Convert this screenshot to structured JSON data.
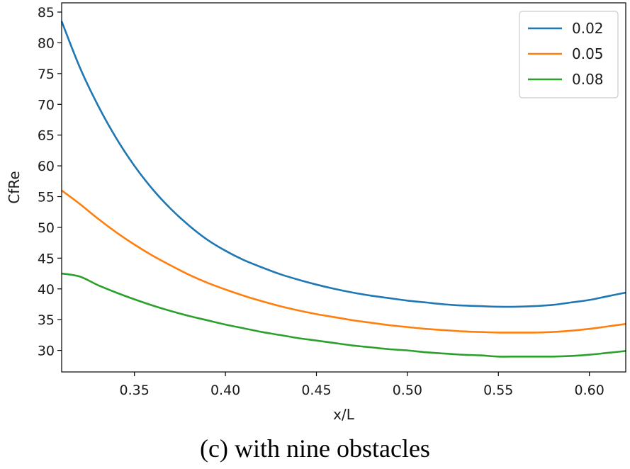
{
  "chart_data": {
    "type": "line",
    "xlabel": "x/L",
    "ylabel": "CfRe",
    "xlim": [
      0.31,
      0.62
    ],
    "ylim": [
      26.5,
      86.5
    ],
    "xticks": [
      "0.35",
      "0.40",
      "0.45",
      "0.50",
      "0.55",
      "0.60"
    ],
    "yticks": [
      "30",
      "35",
      "40",
      "45",
      "50",
      "55",
      "60",
      "65",
      "70",
      "75",
      "80",
      "85"
    ],
    "grid": false,
    "legend_position": "top-right",
    "series": [
      {
        "name": "0.02",
        "color": "#1f77b4",
        "points": [
          [
            0.31,
            83.5
          ],
          [
            0.32,
            76.0
          ],
          [
            0.33,
            69.8
          ],
          [
            0.34,
            64.5
          ],
          [
            0.35,
            60.0
          ],
          [
            0.36,
            56.2
          ],
          [
            0.37,
            53.0
          ],
          [
            0.38,
            50.3
          ],
          [
            0.39,
            48.0
          ],
          [
            0.4,
            46.2
          ],
          [
            0.41,
            44.7
          ],
          [
            0.42,
            43.5
          ],
          [
            0.43,
            42.4
          ],
          [
            0.44,
            41.5
          ],
          [
            0.45,
            40.7
          ],
          [
            0.46,
            40.0
          ],
          [
            0.47,
            39.4
          ],
          [
            0.48,
            38.9
          ],
          [
            0.49,
            38.5
          ],
          [
            0.5,
            38.1
          ],
          [
            0.51,
            37.8
          ],
          [
            0.52,
            37.5
          ],
          [
            0.53,
            37.3
          ],
          [
            0.54,
            37.2
          ],
          [
            0.55,
            37.1
          ],
          [
            0.56,
            37.1
          ],
          [
            0.57,
            37.2
          ],
          [
            0.58,
            37.4
          ],
          [
            0.59,
            37.8
          ],
          [
            0.6,
            38.2
          ],
          [
            0.61,
            38.8
          ],
          [
            0.62,
            39.4
          ]
        ]
      },
      {
        "name": "0.05",
        "color": "#ff7f0e",
        "points": [
          [
            0.31,
            56.0
          ],
          [
            0.32,
            53.8
          ],
          [
            0.33,
            51.4
          ],
          [
            0.34,
            49.2
          ],
          [
            0.35,
            47.2
          ],
          [
            0.36,
            45.4
          ],
          [
            0.37,
            43.8
          ],
          [
            0.38,
            42.3
          ],
          [
            0.39,
            41.0
          ],
          [
            0.4,
            39.9
          ],
          [
            0.41,
            38.9
          ],
          [
            0.42,
            38.0
          ],
          [
            0.43,
            37.2
          ],
          [
            0.44,
            36.5
          ],
          [
            0.45,
            35.9
          ],
          [
            0.46,
            35.4
          ],
          [
            0.47,
            34.9
          ],
          [
            0.48,
            34.5
          ],
          [
            0.49,
            34.1
          ],
          [
            0.5,
            33.8
          ],
          [
            0.51,
            33.5
          ],
          [
            0.52,
            33.3
          ],
          [
            0.53,
            33.1
          ],
          [
            0.54,
            33.0
          ],
          [
            0.55,
            32.9
          ],
          [
            0.56,
            32.9
          ],
          [
            0.57,
            32.9
          ],
          [
            0.58,
            33.0
          ],
          [
            0.59,
            33.2
          ],
          [
            0.6,
            33.5
          ],
          [
            0.61,
            33.9
          ],
          [
            0.62,
            34.3
          ]
        ]
      },
      {
        "name": "0.08",
        "color": "#2ca02c",
        "points": [
          [
            0.31,
            42.5
          ],
          [
            0.32,
            42.0
          ],
          [
            0.33,
            40.6
          ],
          [
            0.34,
            39.4
          ],
          [
            0.35,
            38.3
          ],
          [
            0.36,
            37.3
          ],
          [
            0.37,
            36.4
          ],
          [
            0.38,
            35.6
          ],
          [
            0.39,
            34.9
          ],
          [
            0.4,
            34.2
          ],
          [
            0.41,
            33.6
          ],
          [
            0.42,
            33.0
          ],
          [
            0.43,
            32.5
          ],
          [
            0.44,
            32.0
          ],
          [
            0.45,
            31.6
          ],
          [
            0.46,
            31.2
          ],
          [
            0.47,
            30.8
          ],
          [
            0.48,
            30.5
          ],
          [
            0.49,
            30.2
          ],
          [
            0.5,
            30.0
          ],
          [
            0.51,
            29.7
          ],
          [
            0.52,
            29.5
          ],
          [
            0.53,
            29.3
          ],
          [
            0.54,
            29.2
          ],
          [
            0.55,
            29.0
          ],
          [
            0.56,
            29.0
          ],
          [
            0.57,
            29.0
          ],
          [
            0.58,
            29.0
          ],
          [
            0.59,
            29.1
          ],
          [
            0.6,
            29.3
          ],
          [
            0.61,
            29.6
          ],
          [
            0.62,
            29.9
          ]
        ]
      }
    ]
  },
  "caption": "(c) with nine obstacles"
}
